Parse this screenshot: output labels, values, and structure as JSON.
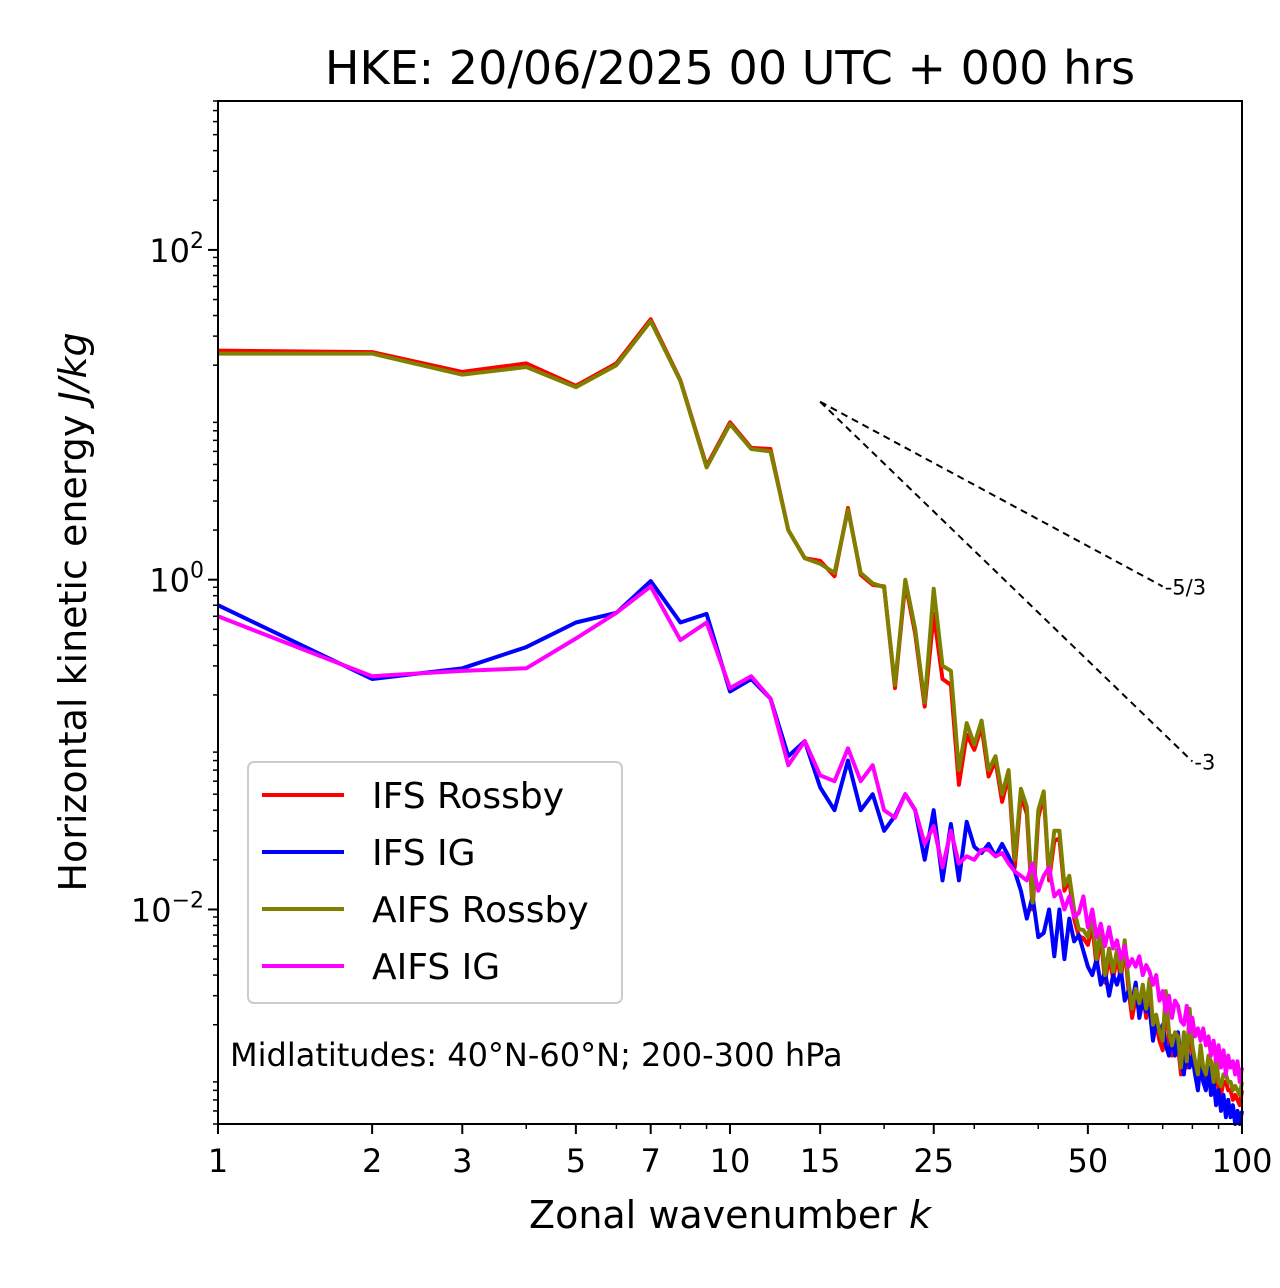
{
  "chart_data": {
    "type": "line",
    "title": "HKE: 20/06/2025 00 UTC + 000 hrs",
    "xlabel": "Zonal wavenumber ",
    "xlabel_var": "k",
    "ylabel": "Horizontal kinetic energy ",
    "ylabel_unit": "J/kg",
    "xscale": "log",
    "yscale": "log",
    "xlim": [
      1,
      100
    ],
    "ylim": [
      0.0005,
      800
    ],
    "grid": false,
    "legend_position": "center-left",
    "annotation": "Midlatitudes: 40°N-60°N; 200-300 hPa",
    "x_ticks": [
      {
        "value": 1,
        "label": "1"
      },
      {
        "value": 2,
        "label": "2"
      },
      {
        "value": 3,
        "label": "3"
      },
      {
        "value": 5,
        "label": "5"
      },
      {
        "value": 7,
        "label": "7"
      },
      {
        "value": 10,
        "label": "10"
      },
      {
        "value": 15,
        "label": "15"
      },
      {
        "value": 25,
        "label": "25"
      },
      {
        "value": 50,
        "label": "50"
      },
      {
        "value": 100,
        "label": "100"
      }
    ],
    "y_ticks": [
      {
        "value": 100,
        "base": "10",
        "exp": "2"
      },
      {
        "value": 1,
        "base": "10",
        "exp": "0"
      },
      {
        "value": 0.01,
        "base": "10",
        "exp": "−2"
      }
    ],
    "reference_lines": [
      {
        "label": "-5/3",
        "slope": -1.6667,
        "x": [
          15,
          70
        ],
        "y": [
          12,
          0.91
        ]
      },
      {
        "label": "-3",
        "slope": -3,
        "x": [
          15,
          80
        ],
        "y": [
          12,
          0.079
        ]
      }
    ],
    "series": [
      {
        "name": "IFS Rossby",
        "color": "#ff0000",
        "x": [
          1,
          2,
          3,
          4,
          5,
          6,
          7,
          8,
          9,
          10,
          11,
          12,
          13,
          14,
          15,
          16,
          17,
          18,
          19,
          20,
          21,
          22,
          23,
          24,
          25,
          26,
          27,
          28,
          29,
          30,
          31,
          32,
          33,
          34,
          35,
          36,
          37,
          38,
          39,
          40,
          41,
          42,
          43,
          44,
          45,
          46,
          47,
          48,
          49,
          50,
          51,
          52,
          53,
          54,
          55,
          56,
          57,
          58,
          59,
          60,
          61,
          62,
          63,
          64,
          65,
          66,
          67,
          68,
          69,
          70,
          71,
          72,
          73,
          74,
          75,
          76,
          77,
          78,
          79,
          80,
          81,
          82,
          83,
          84,
          85,
          86,
          87,
          88,
          89,
          90,
          91,
          92,
          93,
          94,
          95,
          96,
          97,
          98,
          99,
          100
        ],
        "y": [
          24.5,
          24.0,
          18.2,
          20.5,
          15.0,
          20.5,
          38.0,
          16.2,
          4.9,
          9.0,
          6.3,
          6.2,
          2.0,
          1.35,
          1.3,
          1.05,
          2.72,
          1.07,
          0.93,
          0.91,
          0.22,
          0.95,
          0.47,
          0.17,
          0.62,
          0.25,
          0.23,
          0.057,
          0.115,
          0.093,
          0.128,
          0.064,
          0.08,
          0.045,
          0.065,
          0.018,
          0.049,
          0.038,
          0.01,
          0.036,
          0.05,
          0.015,
          0.026,
          0.027,
          0.013,
          0.015,
          0.0088,
          0.0069,
          0.0067,
          0.0061,
          0.008,
          0.0045,
          0.007,
          0.0036,
          0.0052,
          0.0038,
          0.0051,
          0.0038,
          0.006,
          0.0033,
          0.0022,
          0.0029,
          0.0024,
          0.0031,
          0.0022,
          0.0034,
          0.0018,
          0.002,
          0.0016,
          0.0014,
          0.0028,
          0.0016,
          0.0013,
          0.0016,
          0.0015,
          0.001,
          0.0016,
          0.0011,
          0.0022,
          0.0013,
          0.001,
          0.0009,
          0.0013,
          0.00095,
          0.0009,
          0.0011,
          0.001,
          0.0008,
          0.0011,
          0.0008,
          0.00075,
          0.0009,
          0.0009,
          0.0008,
          0.0008,
          0.0007,
          0.00075,
          0.0007,
          0.00065,
          0.0008
        ]
      },
      {
        "name": "IFS IG",
        "color": "#0000ff",
        "x": [
          1,
          2,
          3,
          4,
          5,
          6,
          7,
          8,
          9,
          10,
          11,
          12,
          13,
          14,
          15,
          16,
          17,
          18,
          19,
          20,
          21,
          22,
          23,
          24,
          25,
          26,
          27,
          28,
          29,
          30,
          31,
          32,
          33,
          34,
          35,
          36,
          37,
          38,
          39,
          40,
          41,
          42,
          43,
          44,
          45,
          46,
          47,
          48,
          49,
          50,
          51,
          52,
          53,
          54,
          55,
          56,
          57,
          58,
          59,
          60,
          61,
          62,
          63,
          64,
          65,
          66,
          67,
          68,
          69,
          70,
          71,
          72,
          73,
          74,
          75,
          76,
          77,
          78,
          79,
          80,
          81,
          82,
          83,
          84,
          85,
          86,
          87,
          88,
          89,
          90,
          91,
          92,
          93,
          94,
          95,
          96,
          97,
          98,
          99,
          100
        ],
        "y": [
          0.7,
          0.25,
          0.29,
          0.39,
          0.55,
          0.63,
          0.98,
          0.55,
          0.62,
          0.21,
          0.25,
          0.19,
          0.085,
          0.105,
          0.055,
          0.04,
          0.08,
          0.04,
          0.05,
          0.03,
          0.037,
          0.05,
          0.04,
          0.02,
          0.04,
          0.015,
          0.033,
          0.015,
          0.034,
          0.024,
          0.022,
          0.025,
          0.021,
          0.025,
          0.021,
          0.017,
          0.013,
          0.0088,
          0.012,
          0.0068,
          0.0072,
          0.01,
          0.0052,
          0.01,
          0.005,
          0.0088,
          0.0064,
          0.007,
          0.0056,
          0.0045,
          0.004,
          0.005,
          0.0035,
          0.0042,
          0.003,
          0.004,
          0.0035,
          0.0043,
          0.0028,
          0.0032,
          0.0027,
          0.0036,
          0.0022,
          0.0028,
          0.0024,
          0.0025,
          0.0016,
          0.0021,
          0.0018,
          0.002,
          0.0015,
          0.0013,
          0.0017,
          0.0013,
          0.0018,
          0.0012,
          0.001,
          0.0015,
          0.0011,
          0.0013,
          0.001,
          0.0008,
          0.0012,
          0.0009,
          0.0008,
          0.0011,
          0.00075,
          0.0009,
          0.00065,
          0.0008,
          0.0006,
          0.00075,
          0.00055,
          0.0007,
          0.00055,
          0.00065,
          0.0005,
          0.0006,
          0.0005,
          0.0006
        ]
      },
      {
        "name": "AIFS Rossby",
        "color": "#808000",
        "x": [
          1,
          2,
          3,
          4,
          5,
          6,
          7,
          8,
          9,
          10,
          11,
          12,
          13,
          14,
          15,
          16,
          17,
          18,
          19,
          20,
          21,
          22,
          23,
          24,
          25,
          26,
          27,
          28,
          29,
          30,
          31,
          32,
          33,
          34,
          35,
          36,
          37,
          38,
          39,
          40,
          41,
          42,
          43,
          44,
          45,
          46,
          47,
          48,
          49,
          50,
          51,
          52,
          53,
          54,
          55,
          56,
          57,
          58,
          59,
          60,
          61,
          62,
          63,
          64,
          65,
          66,
          67,
          68,
          69,
          70,
          71,
          72,
          73,
          74,
          75,
          76,
          77,
          78,
          79,
          80,
          81,
          82,
          83,
          84,
          85,
          86,
          87,
          88,
          89,
          90,
          91,
          92,
          93,
          94,
          95,
          96,
          97,
          98,
          99,
          100
        ],
        "y": [
          23.5,
          23.5,
          17.5,
          19.5,
          14.7,
          20.0,
          37.0,
          16.0,
          4.8,
          8.8,
          6.2,
          6.0,
          2.0,
          1.35,
          1.25,
          1.1,
          2.65,
          1.1,
          0.95,
          0.9,
          0.23,
          1.0,
          0.5,
          0.18,
          0.88,
          0.3,
          0.28,
          0.07,
          0.135,
          0.1,
          0.14,
          0.07,
          0.085,
          0.05,
          0.07,
          0.02,
          0.054,
          0.042,
          0.011,
          0.04,
          0.052,
          0.016,
          0.03,
          0.03,
          0.014,
          0.016,
          0.01,
          0.0076,
          0.0075,
          0.0068,
          0.009,
          0.005,
          0.0078,
          0.004,
          0.0058,
          0.0042,
          0.0057,
          0.0042,
          0.0065,
          0.0037,
          0.0025,
          0.0033,
          0.0027,
          0.0035,
          0.0025,
          0.0038,
          0.002,
          0.0023,
          0.0018,
          0.0016,
          0.0032,
          0.0018,
          0.0015,
          0.0018,
          0.0017,
          0.0011,
          0.0018,
          0.0012,
          0.0025,
          0.0015,
          0.0012,
          0.001,
          0.0015,
          0.0011,
          0.001,
          0.0013,
          0.0012,
          0.0009,
          0.0013,
          0.0009,
          0.00085,
          0.001,
          0.001,
          0.0009,
          0.0009,
          0.0008,
          0.00085,
          0.0008,
          0.00075,
          0.0009
        ]
      },
      {
        "name": "AIFS IG",
        "color": "#ff00ff",
        "x": [
          1,
          2,
          3,
          4,
          5,
          6,
          7,
          8,
          9,
          10,
          11,
          12,
          13,
          14,
          15,
          16,
          17,
          18,
          19,
          20,
          21,
          22,
          23,
          24,
          25,
          26,
          27,
          28,
          29,
          30,
          31,
          32,
          33,
          34,
          35,
          36,
          37,
          38,
          39,
          40,
          41,
          42,
          43,
          44,
          45,
          46,
          47,
          48,
          49,
          50,
          51,
          52,
          53,
          54,
          55,
          56,
          57,
          58,
          59,
          60,
          61,
          62,
          63,
          64,
          65,
          66,
          67,
          68,
          69,
          70,
          71,
          72,
          73,
          74,
          75,
          76,
          77,
          78,
          79,
          80,
          81,
          82,
          83,
          84,
          85,
          86,
          87,
          88,
          89,
          90,
          91,
          92,
          93,
          94,
          95,
          96,
          97,
          98,
          99,
          100
        ],
        "y": [
          0.6,
          0.26,
          0.28,
          0.29,
          0.44,
          0.63,
          0.91,
          0.43,
          0.55,
          0.22,
          0.26,
          0.19,
          0.075,
          0.105,
          0.065,
          0.06,
          0.095,
          0.06,
          0.075,
          0.04,
          0.036,
          0.05,
          0.04,
          0.025,
          0.032,
          0.018,
          0.03,
          0.019,
          0.021,
          0.02,
          0.023,
          0.023,
          0.021,
          0.022,
          0.019,
          0.017,
          0.016,
          0.015,
          0.019,
          0.013,
          0.016,
          0.018,
          0.012,
          0.013,
          0.01,
          0.012,
          0.009,
          0.0095,
          0.012,
          0.0078,
          0.01,
          0.0068,
          0.0082,
          0.006,
          0.0078,
          0.0058,
          0.0065,
          0.005,
          0.006,
          0.0045,
          0.005,
          0.0045,
          0.0052,
          0.004,
          0.0046,
          0.0042,
          0.0035,
          0.004,
          0.0028,
          0.0032,
          0.0024,
          0.003,
          0.0022,
          0.0028,
          0.0026,
          0.0021,
          0.002,
          0.0026,
          0.0018,
          0.0022,
          0.0017,
          0.0019,
          0.0016,
          0.0019,
          0.0015,
          0.0017,
          0.0013,
          0.0016,
          0.0012,
          0.0015,
          0.0011,
          0.0014,
          0.001,
          0.0013,
          0.0011,
          0.0012,
          0.001,
          0.0012,
          0.0009,
          0.0011
        ]
      }
    ]
  }
}
